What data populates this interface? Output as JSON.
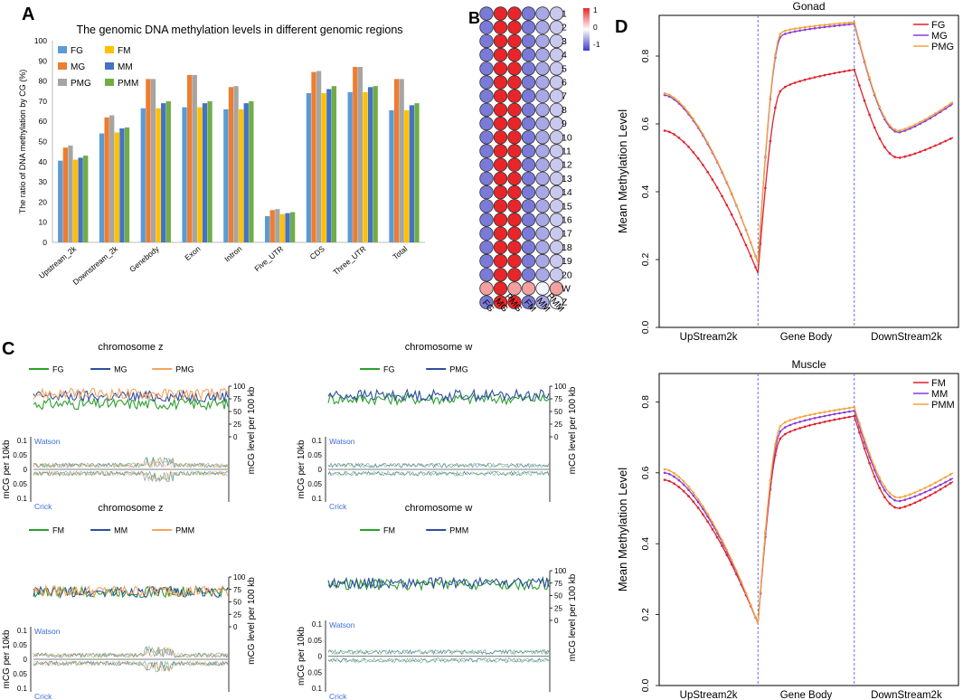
{
  "panel_letters": {
    "a": "A",
    "b": "B",
    "c": "C",
    "d": "D"
  },
  "colors": {
    "FG": "#5b9bd5",
    "MG": "#ed7d31",
    "PMG": "#a5a5a5",
    "FM": "#ffc000",
    "MM": "#4472c4",
    "PMM": "#70ad47",
    "c_green": "#2ca02c",
    "c_blue": "#2e4fa0",
    "c_orange": "#f4a460",
    "d_red": "#e0202a",
    "d_purple": "#8a3bd8",
    "d_orange": "#f3a43a",
    "dot_red": "#e8262a",
    "dot_blue": "#7a7ad8",
    "dot_pink": "#f2a0a0",
    "annot_blue": "#3b6fd8"
  },
  "chart_data": [
    {
      "id": "A",
      "type": "bar",
      "title": "The genomic DNA methylation levels in different genomic regions",
      "xlabel": "",
      "ylabel": "The ratio of DNA methylation by CG (%)",
      "ylim": [
        0,
        100
      ],
      "yticks": [
        0,
        10,
        20,
        30,
        40,
        50,
        60,
        70,
        80,
        90,
        100
      ],
      "legend_position": "top-left",
      "categories": [
        "Upstream_2k",
        "Downstream_2k",
        "Genebody",
        "Exon",
        "Intron",
        "Five_UTR",
        "CDS",
        "Three_UTR",
        "Total"
      ],
      "series": [
        {
          "name": "FG",
          "values": [
            40.5,
            54,
            66.5,
            67,
            66,
            13,
            74,
            74.5,
            65.5
          ]
        },
        {
          "name": "MG",
          "values": [
            47,
            62,
            81,
            83,
            77,
            16,
            84.5,
            87,
            81
          ]
        },
        {
          "name": "PMG",
          "values": [
            48,
            63,
            81,
            83,
            77.5,
            16.5,
            85,
            87,
            81
          ]
        },
        {
          "name": "FM",
          "values": [
            41,
            54.5,
            66.5,
            67,
            66,
            14,
            74,
            74.5,
            65.5
          ]
        },
        {
          "name": "MM",
          "values": [
            42,
            56.5,
            69,
            69,
            69,
            14.5,
            76,
            77,
            68
          ]
        },
        {
          "name": "PMM",
          "values": [
            43,
            57,
            70,
            70,
            70,
            15,
            77.5,
            77.5,
            69
          ]
        }
      ]
    },
    {
      "id": "B",
      "type": "heatmap",
      "columns": [
        "FG",
        "MG",
        "PMG",
        "FM",
        "MM",
        "PMM"
      ],
      "rows": [
        "1",
        "2",
        "3",
        "4",
        "5",
        "6",
        "7",
        "8",
        "9",
        "10",
        "11",
        "12",
        "13",
        "14",
        "15",
        "16",
        "17",
        "18",
        "19",
        "20",
        "W",
        "Z"
      ],
      "colorbar": {
        "min": -1,
        "max": 1,
        "ticks": [
          "1",
          "0",
          "-1"
        ]
      },
      "values": [
        [
          -0.9,
          1,
          1,
          -0.9,
          -0.5,
          -0.3
        ],
        [
          -0.9,
          1,
          1,
          -0.9,
          -0.5,
          -0.3
        ],
        [
          -0.9,
          1,
          1,
          -0.9,
          -0.5,
          -0.3
        ],
        [
          -0.9,
          1,
          1,
          -0.9,
          -0.5,
          -0.3
        ],
        [
          -0.9,
          1,
          1,
          -0.9,
          -0.5,
          -0.3
        ],
        [
          -0.9,
          1,
          1,
          -0.9,
          -0.5,
          -0.3
        ],
        [
          -0.9,
          1,
          1,
          -0.9,
          -0.5,
          -0.3
        ],
        [
          -0.9,
          1,
          1,
          -0.9,
          -0.5,
          -0.3
        ],
        [
          -0.9,
          1,
          1,
          -0.9,
          -0.5,
          -0.3
        ],
        [
          -0.9,
          1,
          1,
          -0.9,
          -0.5,
          -0.3
        ],
        [
          -0.9,
          1,
          1,
          -0.9,
          -0.5,
          -0.3
        ],
        [
          -0.9,
          1,
          1,
          -0.9,
          -0.5,
          -0.3
        ],
        [
          -0.9,
          1,
          1,
          -0.9,
          -0.5,
          -0.3
        ],
        [
          -0.9,
          1,
          1,
          -0.9,
          -0.5,
          -0.3
        ],
        [
          -0.9,
          1,
          1,
          -0.9,
          -0.5,
          -0.3
        ],
        [
          -0.9,
          1,
          1,
          -0.9,
          -0.5,
          -0.3
        ],
        [
          -0.9,
          1,
          1,
          -0.9,
          -0.5,
          -0.3
        ],
        [
          -0.9,
          1,
          1,
          -0.9,
          -0.5,
          -0.3
        ],
        [
          -0.9,
          1,
          1,
          -0.9,
          -0.5,
          -0.3
        ],
        [
          -0.9,
          1,
          1,
          -0.9,
          -0.5,
          -0.3
        ],
        [
          0.5,
          1,
          0.5,
          0.5,
          0,
          0.5
        ],
        [
          -0.9,
          1,
          1,
          -0.9,
          -0.5,
          0
        ]
      ]
    },
    {
      "id": "C",
      "type": "line",
      "subplots": [
        {
          "title": "chromosome z",
          "series": [
            "FG",
            "MG",
            "PMG"
          ],
          "line_colors": [
            "c_green",
            "c_blue",
            "c_orange"
          ],
          "base": [
            65,
            80,
            85
          ]
        },
        {
          "title": "chromosome w",
          "series": [
            "FG",
            "PMG"
          ],
          "line_colors": [
            "c_green",
            "c_blue"
          ],
          "base": [
            75,
            82
          ]
        },
        {
          "title": "chromosome z",
          "series": [
            "FM",
            "MM",
            "PMM"
          ],
          "line_colors": [
            "c_green",
            "c_blue",
            "c_orange"
          ],
          "base": [
            70,
            70,
            72
          ]
        },
        {
          "title": "chromosome w",
          "series": [
            "FM",
            "PMM"
          ],
          "line_colors": [
            "c_green",
            "c_blue"
          ],
          "base": [
            72,
            75
          ]
        }
      ],
      "right_axis": {
        "label": "mCG level per 100 kb",
        "ylim": [
          0,
          100
        ],
        "ticks": [
          "0",
          "25",
          "50",
          "75",
          "100"
        ]
      },
      "left_axis": {
        "label": "mCG per 10kb",
        "ticks": [
          "0.1",
          "0.05",
          "0",
          "0.05",
          "0.1"
        ]
      },
      "strand_top": "Watson",
      "strand_bottom": "Crick"
    },
    {
      "id": "D",
      "type": "line",
      "subplots": [
        {
          "title": "Gonad",
          "ylabel": "Mean Methylation Level",
          "ylim": [
            0,
            0.92
          ],
          "yticks": [
            "0.0",
            "0.2",
            "0.4",
            "0.6",
            "0.8"
          ],
          "x_regions": [
            "UpStream2k",
            "Gene Body",
            "DownStream2k"
          ],
          "legend_position": "top-right",
          "series": [
            {
              "name": "FG",
              "color": "d_red",
              "up": [
                0.58,
                0.16
              ],
              "body": [
                0.6,
                0.7,
                0.72,
                0.74,
                0.76
              ],
              "down": [
                0.65,
                0.5,
                0.56
              ]
            },
            {
              "name": "MG",
              "color": "d_purple",
              "up": [
                0.685,
                0.19
              ],
              "body": [
                0.7,
                0.86,
                0.89,
                0.895,
                0.895
              ],
              "down": [
                0.7,
                0.575,
                0.66
              ]
            },
            {
              "name": "PMG",
              "color": "d_orange",
              "up": [
                0.69,
                0.19
              ],
              "body": [
                0.7,
                0.87,
                0.895,
                0.9,
                0.9
              ],
              "down": [
                0.7,
                0.58,
                0.665
              ]
            }
          ]
        },
        {
          "title": "Muscle",
          "ylabel": "Mean Methylation Level",
          "ylim": [
            0,
            0.88
          ],
          "yticks": [
            "0.0",
            "0.2",
            "0.4",
            "0.6",
            "0.8"
          ],
          "x_regions": [
            "UpStream2k",
            "Gene Body",
            "DownStream2k"
          ],
          "legend_position": "top-right",
          "series": [
            {
              "name": "FM",
              "color": "d_red",
              "up": [
                0.58,
                0.175
              ],
              "body": [
                0.5,
                0.7,
                0.73,
                0.75,
                0.76
              ],
              "down": [
                0.66,
                0.5,
                0.575
              ]
            },
            {
              "name": "MM",
              "color": "d_purple",
              "up": [
                0.6,
                0.175
              ],
              "body": [
                0.52,
                0.72,
                0.755,
                0.77,
                0.775
              ],
              "down": [
                0.67,
                0.52,
                0.585
              ]
            },
            {
              "name": "PMM",
              "color": "d_orange",
              "up": [
                0.61,
                0.175
              ],
              "body": [
                0.53,
                0.735,
                0.77,
                0.78,
                0.785
              ],
              "down": [
                0.68,
                0.53,
                0.6
              ]
            }
          ]
        }
      ]
    }
  ]
}
